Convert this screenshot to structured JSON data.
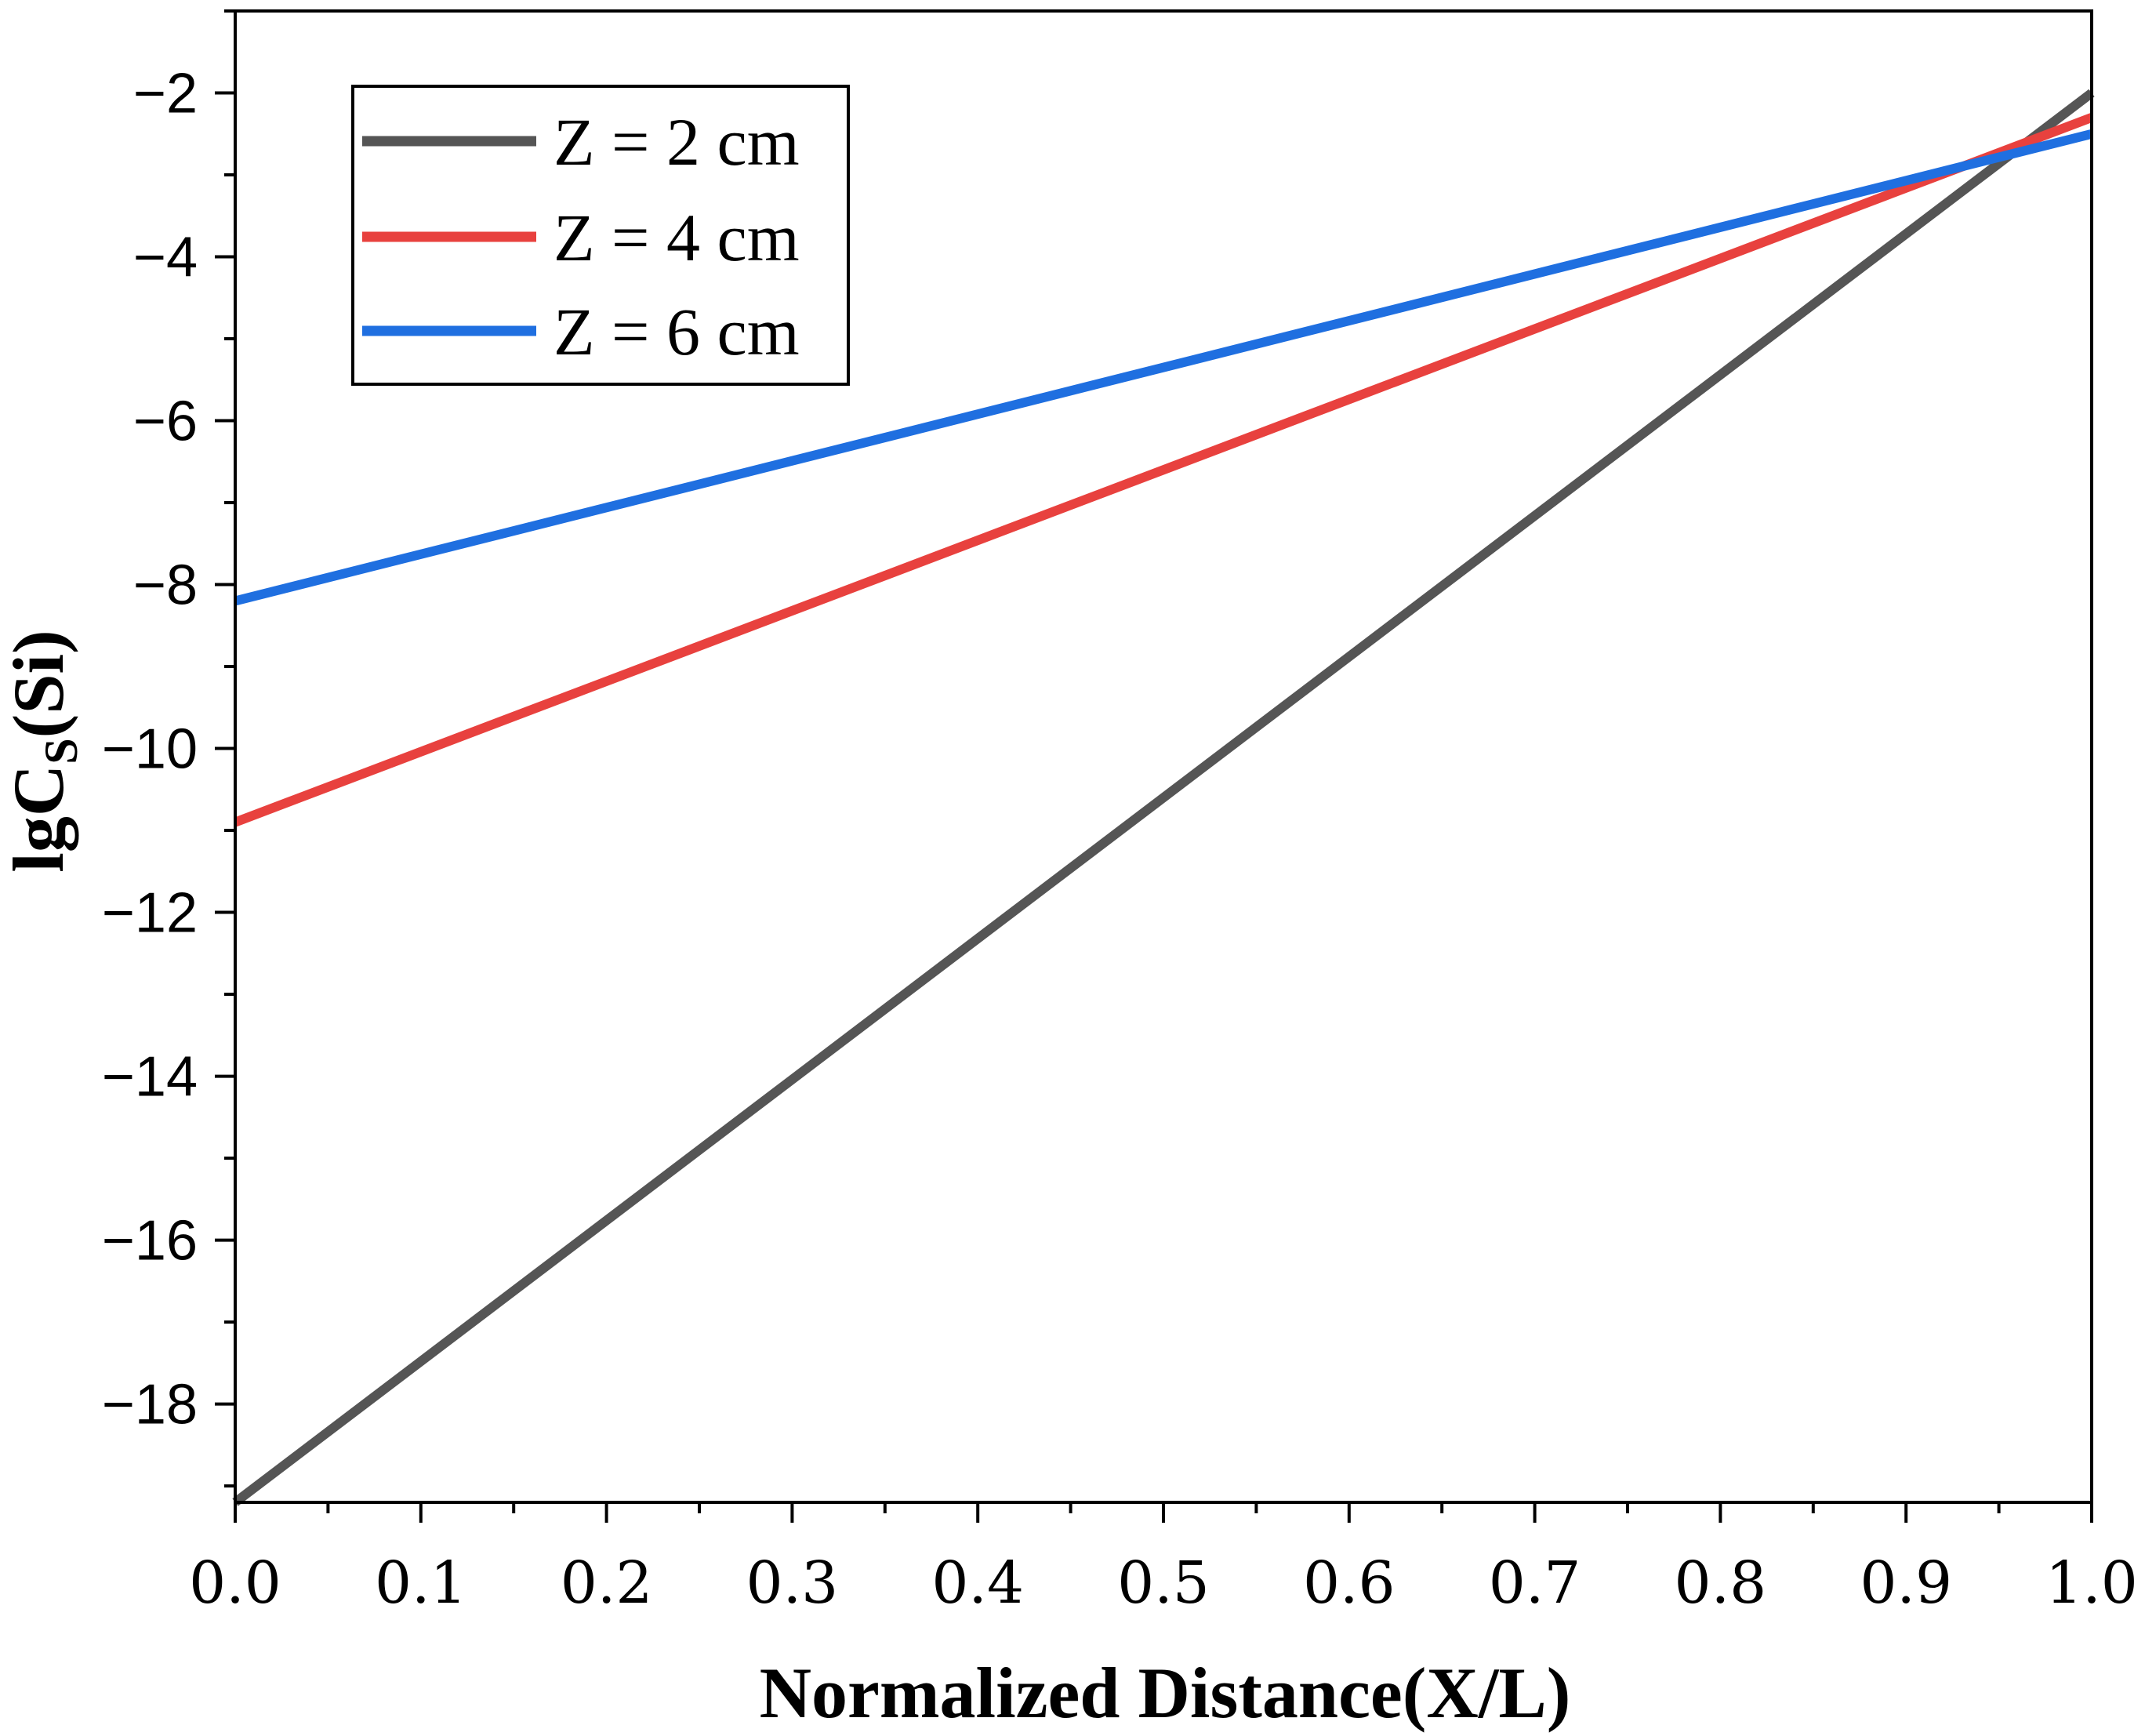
{
  "chart_data": {
    "type": "line",
    "xlabel": "Normalized Distance(X/L)",
    "ylabel": {
      "main": "lgC",
      "sub": "S",
      "suffix": "(Si)"
    },
    "xlim": [
      0.0,
      1.0
    ],
    "ylim": [
      -19.2,
      -1.0
    ],
    "x_ticks": [
      0.0,
      0.1,
      0.2,
      0.3,
      0.4,
      0.5,
      0.6,
      0.7,
      0.8,
      0.9,
      1.0
    ],
    "x_tick_labels": [
      "0.0",
      "0.1",
      "0.2",
      "0.3",
      "0.4",
      "0.5",
      "0.6",
      "0.7",
      "0.8",
      "0.9",
      "1.0"
    ],
    "y_ticks": [
      -18,
      -16,
      -14,
      -12,
      -10,
      -8,
      -6,
      -4,
      -2
    ],
    "y_tick_labels": [
      "−18",
      "−16",
      "−14",
      "−12",
      "−10",
      "−8",
      "−6",
      "−4",
      "−2"
    ],
    "legend_position": "top-left",
    "series": [
      {
        "name": "Z = 2 cm",
        "color": "#555555",
        "x": [
          0.0,
          1.0
        ],
        "y": [
          -19.2,
          -2.0
        ]
      },
      {
        "name": "Z = 4 cm",
        "color": "#e8413e",
        "x": [
          0.0,
          1.0
        ],
        "y": [
          -10.9,
          -2.3
        ]
      },
      {
        "name": "Z = 6 cm",
        "color": "#1f6fe0",
        "x": [
          0.0,
          1.0
        ],
        "y": [
          -8.2,
          -2.5
        ]
      }
    ]
  }
}
